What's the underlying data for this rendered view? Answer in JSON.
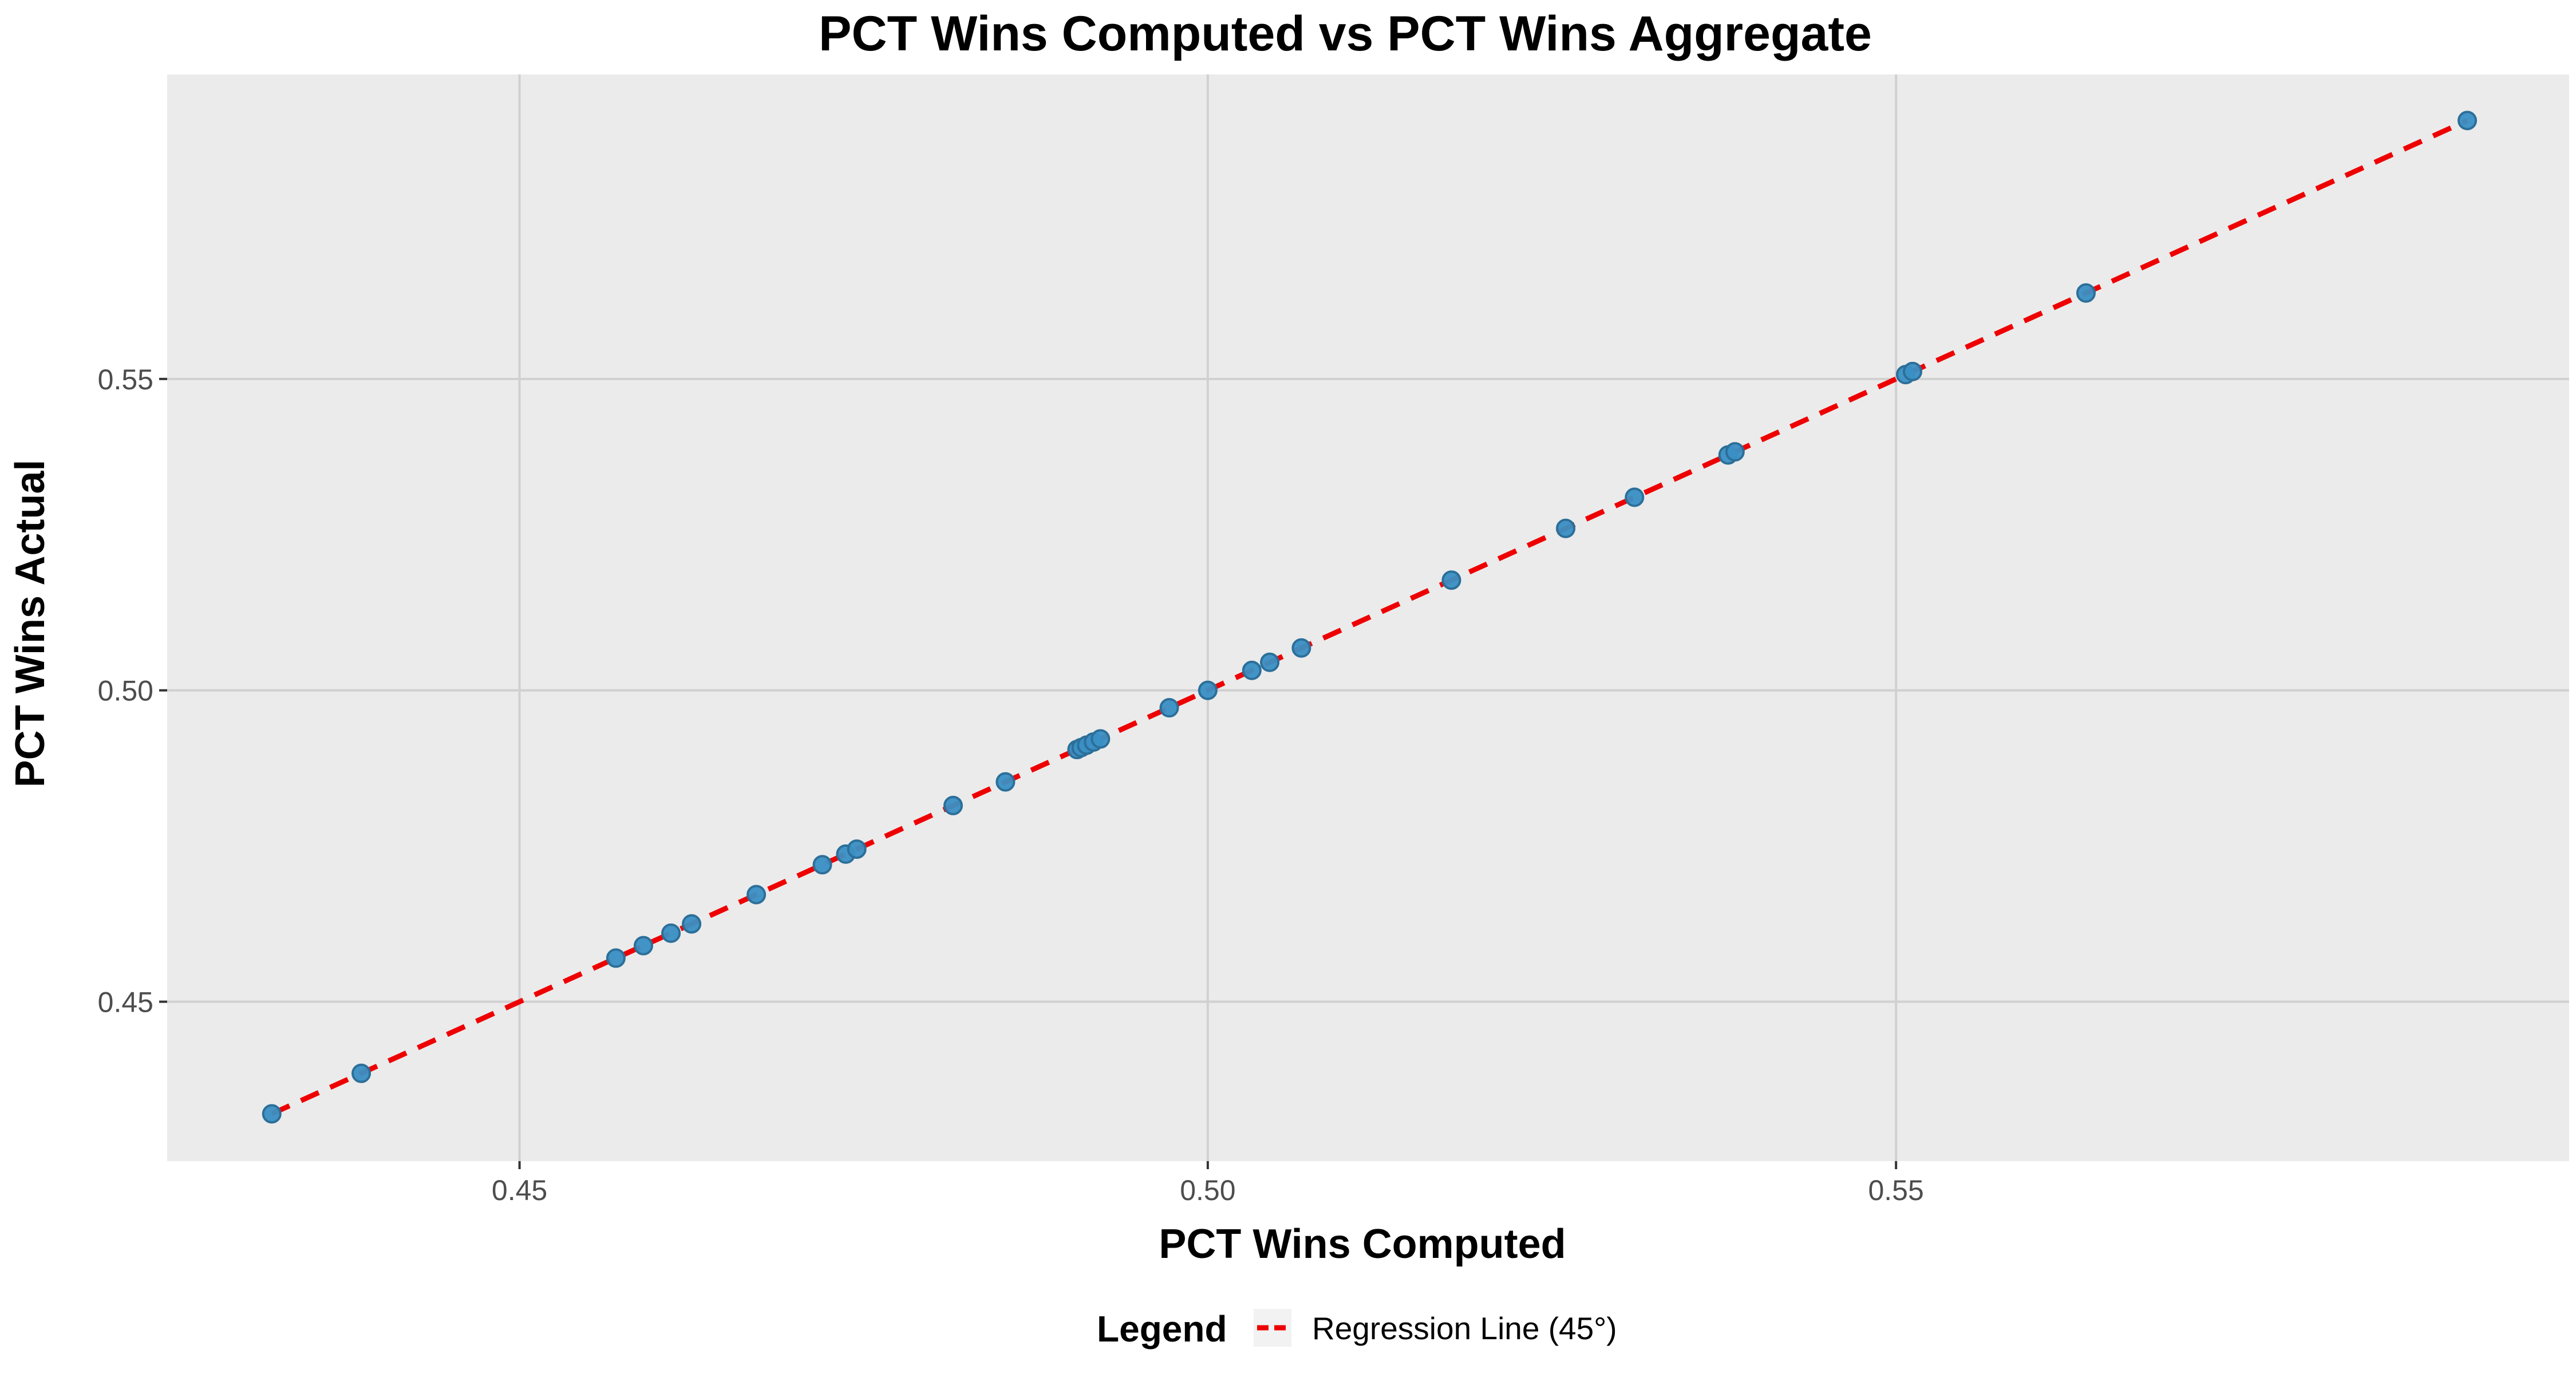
{
  "chart_data": {
    "type": "scatter",
    "title": "PCT Wins Computed vs PCT Wins Aggregate",
    "xlabel": "PCT Wins Computed",
    "ylabel": "PCT Wins Actual",
    "xlim": [
      0.4244,
      0.5989
    ],
    "ylim": [
      0.4244,
      0.5989
    ],
    "x_ticks": [
      0.45,
      0.5,
      0.55
    ],
    "x_tick_labels": [
      "0.45",
      "0.50",
      "0.55"
    ],
    "y_ticks": [
      0.45,
      0.5,
      0.55
    ],
    "y_tick_labels": [
      "0.45",
      "0.50",
      "0.55"
    ],
    "grid": true,
    "background": "#ebebeb",
    "grid_color": "#d0d0d0",
    "point_color": "#3a8fc4",
    "point_edge_color": "#2c6f99",
    "series": [
      {
        "x": [
          0.432,
          0.4385,
          0.457,
          0.459,
          0.461,
          0.4625,
          0.4672,
          0.472,
          0.4737,
          0.4745,
          0.4815,
          0.4853,
          0.4905,
          0.4908,
          0.4912,
          0.4917,
          0.4922,
          0.4972,
          0.5,
          0.5032,
          0.5045,
          0.5068,
          0.5177,
          0.526,
          0.531,
          0.5378,
          0.5383,
          0.5507,
          0.5512,
          0.5638,
          0.5915
        ],
        "y": [
          0.432,
          0.4385,
          0.457,
          0.459,
          0.461,
          0.4625,
          0.4672,
          0.472,
          0.4737,
          0.4745,
          0.4815,
          0.4853,
          0.4905,
          0.4908,
          0.4912,
          0.4917,
          0.4922,
          0.4972,
          0.5,
          0.5032,
          0.5045,
          0.5068,
          0.5177,
          0.526,
          0.531,
          0.5378,
          0.5383,
          0.5507,
          0.5512,
          0.5638,
          0.5915
        ]
      }
    ],
    "regression_line": {
      "x": [
        0.432,
        0.5915
      ],
      "y": [
        0.432,
        0.5915
      ],
      "color": "#ee0000",
      "style": "dashed"
    },
    "legend": {
      "title": "Legend",
      "position": "bottom",
      "entries": [
        {
          "label": "Regression Line (45°)",
          "color": "#ee0000",
          "style": "dashed"
        }
      ]
    }
  }
}
